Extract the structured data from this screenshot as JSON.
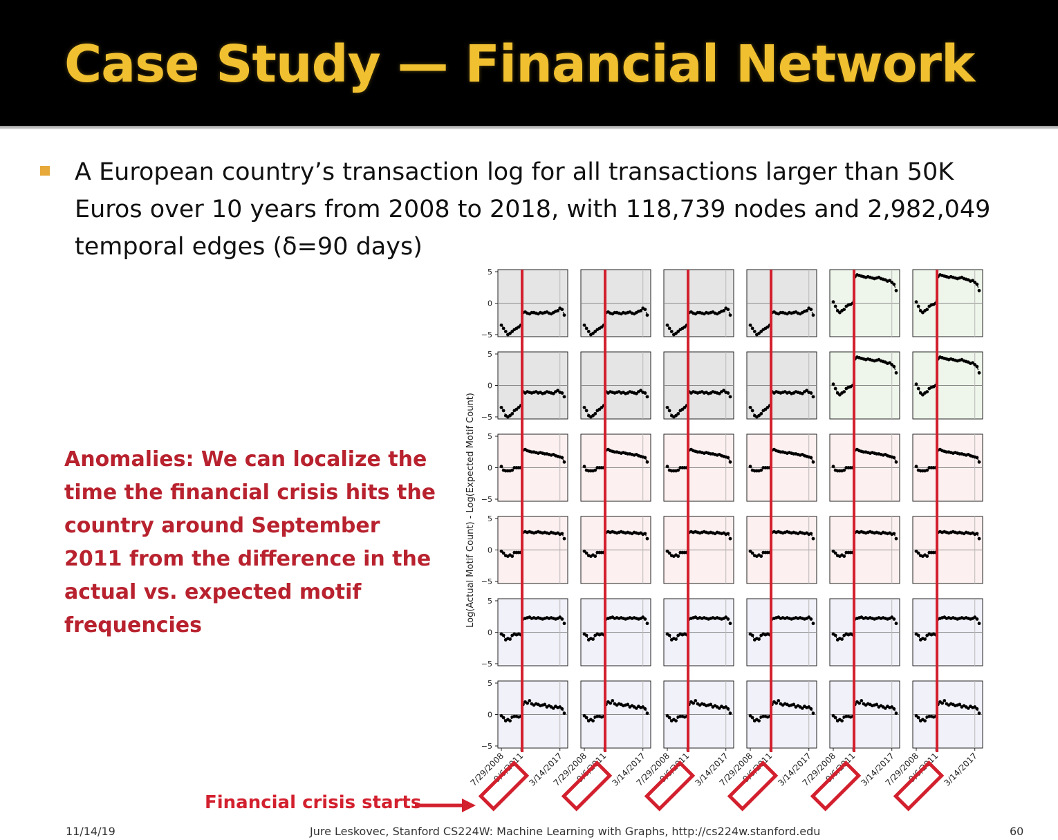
{
  "slide": {
    "title": "Case Study — Financial Network",
    "bullet": "A European country’s transaction log for all transactions larger than 50K Euros over 10 years from 2008 to 2018, with 118,739 nodes and 2,982,049 temporal edges (δ=90 days)",
    "anomaly_note": "Anomalies: We can localize the time the financial crisis hits the country around September 2011 from the difference in the actual vs. expected motif frequencies",
    "crisis_label": "Financial crisis starts",
    "footer_date": "11/14/19",
    "footer_credit": "Jure Leskovec, Stanford CS224W: Machine Learning with Graphs, http://cs224w.stanford.edu",
    "page_number": "60"
  },
  "colors": {
    "title": "#f0c030",
    "bullet_marker": "#e6a93a",
    "anomaly_text": "#b8222e",
    "crisis_red": "#d3202e",
    "panel_gray": "#e5e5e5",
    "panel_green": "#eef5ea",
    "panel_pink": "#fdf0f0",
    "panel_lavender": "#f1f1f9"
  },
  "chart_data": {
    "type": "scatter",
    "layout": "6x6 grid of small multiples",
    "ylabel": "Log(Actual Motif Count) - Log(Expected Motif Count)",
    "ylim": [
      -5,
      5
    ],
    "yticks": [
      5,
      0,
      -5
    ],
    "x_tick_labels": [
      "7/29/2008",
      "9/6/2011",
      "3/14/2017"
    ],
    "crisis_date": "9/6/2011",
    "row_backgrounds": [
      "#e5e5e5",
      "#e5e5e5",
      "#fdf0f0",
      "#fdf0f0",
      "#f1f1f9",
      "#f1f1f9"
    ],
    "green_panels": [
      [
        0,
        4
      ],
      [
        0,
        5
      ],
      [
        1,
        4
      ],
      [
        1,
        5
      ]
    ],
    "time_points": 30,
    "crisis_index": 9,
    "series_rows": [
      {
        "pre": [
          -3.5,
          -4,
          -4.5,
          -5,
          -4.8,
          -4.5,
          -4.2,
          -4,
          -3.8,
          -3.5
        ],
        "post": [
          -1.5,
          -1.4,
          -1.6,
          -1.7,
          -1.5,
          -1.5,
          -1.6,
          -1.7,
          -1.5,
          -1.6,
          -1.5,
          -1.4,
          -1.6,
          -1.7,
          -1.5,
          -1.3,
          -1.2,
          -0.8,
          -1.0,
          -1.9
        ]
      },
      {
        "pre": [
          -3.5,
          -4,
          -4.8,
          -5,
          -4.8,
          -4.5,
          -4.0,
          -3.8,
          -3.5,
          -3.2
        ],
        "post": [
          -1.0,
          -1.2,
          -1.0,
          -1.1,
          -1.2,
          -1.1,
          -1.0,
          -1.2,
          -1.1,
          -1.3,
          -1.2,
          -1.0,
          -1.1,
          -1.2,
          -1.3,
          -1.0,
          -0.8,
          -1.1,
          -1.2,
          -1.8
        ]
      },
      {
        "pre": [
          0.2,
          -0.4,
          -0.5,
          -0.5,
          -0.5,
          -0.4,
          0.0,
          0.0,
          0.0,
          0.0
        ],
        "post": [
          2.8,
          2.9,
          2.7,
          2.6,
          2.5,
          2.5,
          2.4,
          2.3,
          2.4,
          2.3,
          2.2,
          2.2,
          2.1,
          2.0,
          2.1,
          1.9,
          1.8,
          1.7,
          1.6,
          0.9
        ]
      },
      {
        "pre": [
          -0.2,
          -0.5,
          -0.9,
          -1.0,
          -0.8,
          -1.0,
          -0.4,
          -0.4,
          -0.4,
          -0.4
        ],
        "post": [
          2.8,
          2.9,
          2.8,
          2.9,
          2.8,
          2.7,
          2.8,
          2.9,
          2.8,
          2.7,
          2.8,
          2.7,
          2.6,
          2.8,
          2.7,
          2.6,
          2.7,
          2.5,
          2.6,
          1.8
        ]
      },
      {
        "pre": [
          -0.3,
          -0.5,
          -1.2,
          -1.0,
          -1.1,
          -0.5,
          -0.3,
          -0.4,
          -0.3,
          -0.4
        ],
        "post": [
          2.1,
          2.2,
          2.3,
          2.4,
          2.2,
          2.3,
          2.2,
          2.3,
          2.2,
          2.1,
          2.2,
          2.3,
          2.2,
          2.3,
          2.2,
          2.1,
          2.2,
          2.4,
          2.1,
          1.4
        ]
      },
      {
        "pre": [
          -0.2,
          -0.5,
          -1.0,
          -0.8,
          -1.0,
          -0.4,
          -0.3,
          -0.3,
          -0.4,
          -0.3
        ],
        "post": [
          1.6,
          2.0,
          1.8,
          2.2,
          1.7,
          1.5,
          1.7,
          1.6,
          1.4,
          1.5,
          1.6,
          1.2,
          1.4,
          1.2,
          1.0,
          1.3,
          1.1,
          1.2,
          0.9,
          0.2
        ]
      }
    ],
    "green_series": {
      "pre": [
        0.2,
        -0.5,
        -1.2,
        -1.5,
        -1.2,
        -1.0,
        -0.5,
        -0.3,
        -0.2,
        0.0
      ],
      "post": [
        4.2,
        4.5,
        4.4,
        4.3,
        4.2,
        4.1,
        4.2,
        4.1,
        4.0,
        3.9,
        4.0,
        4.1,
        3.9,
        3.8,
        3.7,
        3.5,
        3.6,
        3.3,
        3.0,
        2.0
      ]
    }
  }
}
